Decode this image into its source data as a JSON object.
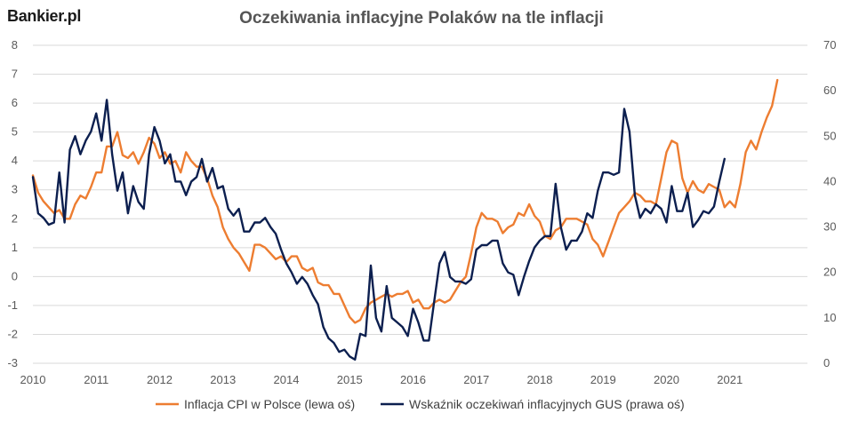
{
  "brand": "Bankier.pl",
  "chart_data": {
    "type": "line",
    "title": "Oczekiwania inflacyjne Polaków na tle inflacji",
    "left_axis": {
      "ylim": [
        -3,
        8
      ],
      "ticks": [
        "-3",
        "-2",
        "-1",
        "0",
        "1",
        "2",
        "3",
        "4",
        "5",
        "6",
        "7",
        "8"
      ]
    },
    "right_axis": {
      "ylim": [
        0,
        70
      ],
      "ticks": [
        "0",
        "10",
        "20",
        "30",
        "40",
        "50",
        "60",
        "70"
      ]
    },
    "x_ticks": [
      "2010",
      "2011",
      "2012",
      "2013",
      "2014",
      "2015",
      "2016",
      "2017",
      "2018",
      "2019",
      "2020",
      "2021"
    ],
    "x_range": [
      2010.0,
      2022.0
    ],
    "grid": "horizontal",
    "legend_position": "bottom",
    "colors": {
      "cpi": "#ed7d31",
      "gus": "#0c1f4f",
      "grid": "#d9d9d9"
    },
    "series": [
      {
        "name": "Inflacja CPI w Polsce (lewa oś)",
        "axis": "left",
        "x_start": 2010.0,
        "x_step": 0.0833333,
        "values": [
          3.5,
          2.9,
          2.6,
          2.4,
          2.2,
          2.3,
          2.0,
          2.0,
          2.5,
          2.8,
          2.7,
          3.1,
          3.6,
          3.6,
          4.5,
          4.5,
          5.0,
          4.2,
          4.1,
          4.3,
          3.9,
          4.3,
          4.8,
          4.6,
          4.1,
          4.3,
          3.9,
          4.0,
          3.6,
          4.3,
          4.0,
          3.8,
          3.8,
          3.4,
          2.8,
          2.4,
          1.7,
          1.3,
          1.0,
          0.8,
          0.5,
          0.2,
          1.1,
          1.1,
          1.0,
          0.8,
          0.6,
          0.7,
          0.5,
          0.7,
          0.7,
          0.3,
          0.2,
          0.3,
          -0.2,
          -0.3,
          -0.3,
          -0.6,
          -0.6,
          -1.0,
          -1.4,
          -1.6,
          -1.5,
          -1.1,
          -0.9,
          -0.8,
          -0.7,
          -0.6,
          -0.7,
          -0.6,
          -0.6,
          -0.5,
          -0.9,
          -0.8,
          -1.1,
          -1.1,
          -0.9,
          -0.8,
          -0.9,
          -0.8,
          -0.5,
          -0.2,
          0.0,
          0.8,
          1.7,
          2.2,
          2.0,
          2.0,
          1.9,
          1.5,
          1.7,
          1.8,
          2.2,
          2.1,
          2.5,
          2.1,
          1.9,
          1.4,
          1.3,
          1.6,
          1.7,
          2.0,
          2.0,
          2.0,
          1.9,
          1.8,
          1.3,
          1.1,
          0.7,
          1.2,
          1.7,
          2.2,
          2.4,
          2.6,
          2.9,
          2.8,
          2.6,
          2.6,
          2.5,
          3.4,
          4.3,
          4.7,
          4.6,
          3.4,
          2.9,
          3.3,
          3.0,
          2.9,
          3.2,
          3.1,
          3.0,
          2.4,
          2.6,
          2.4,
          3.2,
          4.3,
          4.7,
          4.4,
          5.0,
          5.5,
          5.9,
          6.8
        ]
      },
      {
        "name": "Wskaźnik oczekiwań inflacyjnych GUS (prawa oś)",
        "axis": "right",
        "x_start": 2010.0,
        "x_step": 0.0833333,
        "values": [
          41,
          33,
          32,
          30.5,
          31,
          42,
          31,
          47,
          50,
          46,
          49,
          51,
          55,
          49,
          58,
          46,
          38,
          42,
          33,
          39,
          35.5,
          34,
          46,
          52,
          49,
          44,
          46,
          40,
          40,
          37,
          40,
          41,
          45,
          40,
          43,
          38.5,
          39,
          34,
          32.5,
          34,
          29,
          29,
          31,
          31,
          32,
          30,
          28.5,
          25,
          22,
          20,
          17.5,
          19,
          17.5,
          15,
          13,
          8,
          5.5,
          4.5,
          2.5,
          3,
          1.5,
          0.8,
          6.5,
          6,
          21.5,
          10,
          7,
          17,
          10,
          9,
          8,
          6,
          12,
          9,
          5,
          5,
          13.5,
          22,
          24.5,
          19,
          18,
          18,
          17.5,
          18.5,
          25,
          26,
          26,
          27,
          27,
          22,
          20,
          19.5,
          15,
          19,
          22.5,
          25.5,
          27,
          28,
          28,
          39.5,
          30,
          25,
          27,
          27,
          29,
          33,
          32,
          38,
          42,
          42,
          41.5,
          42,
          56,
          51,
          37,
          32,
          34,
          33,
          35,
          34,
          31,
          39,
          33.5,
          33.5,
          37.5,
          30,
          31.5,
          33.5,
          33,
          34.5,
          40,
          45
        ]
      }
    ]
  }
}
